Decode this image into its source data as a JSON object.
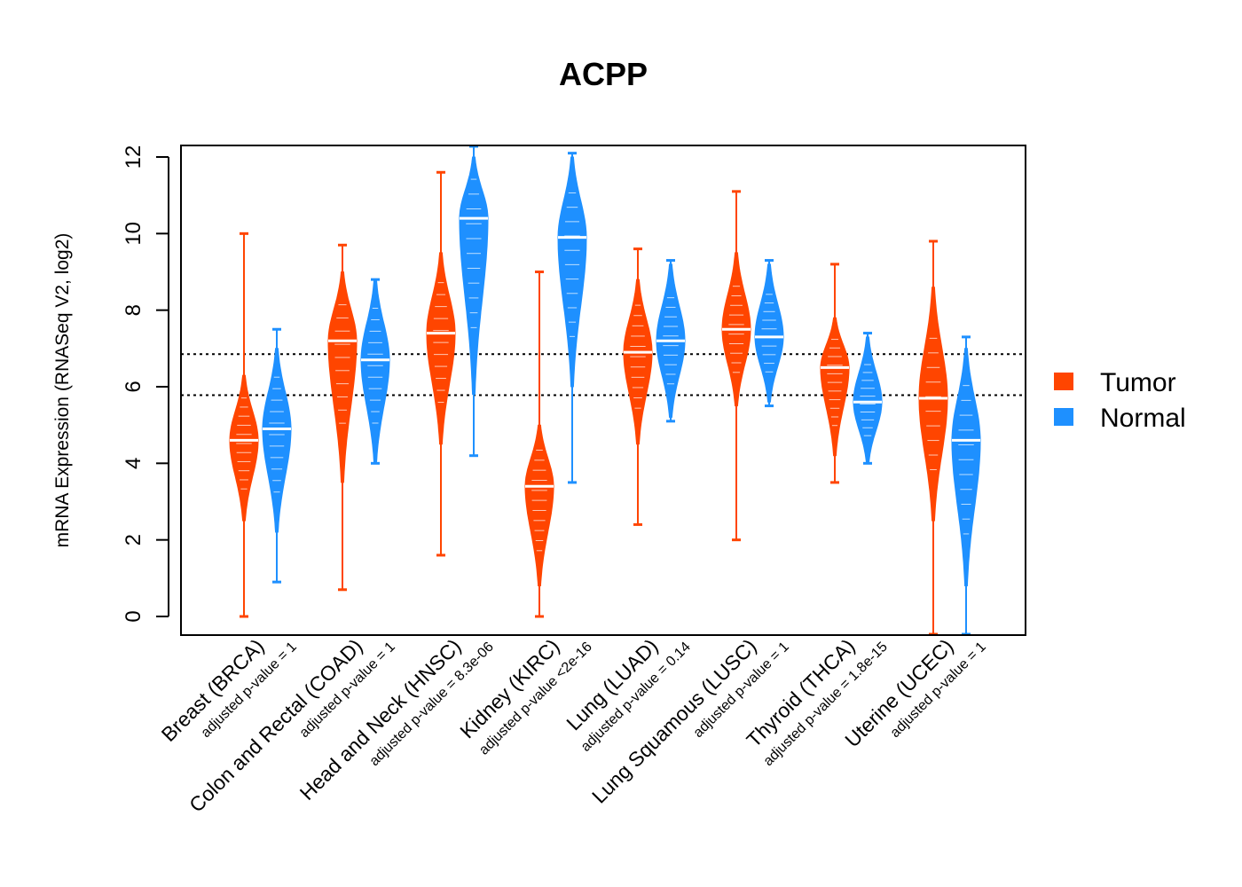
{
  "chart_data": {
    "type": "violin",
    "title": "ACPP",
    "ylabel": "mRNA Expression (RNASeq V2, log2)",
    "xlabel": "",
    "ylim": [
      -0.5,
      12.3
    ],
    "yticks": [
      0,
      2,
      4,
      6,
      8,
      10,
      12
    ],
    "reference_lines": [
      6.85,
      5.78
    ],
    "legend": {
      "position": "right",
      "entries": [
        {
          "name": "Tumor",
          "color": "#FF4500"
        },
        {
          "name": "Normal",
          "color": "#1E90FF"
        }
      ]
    },
    "categories": [
      {
        "name": "Breast (BRCA)",
        "pvalue": "adjusted p-value = 1",
        "tumor": {
          "median": 4.6,
          "min": 0,
          "max": 10,
          "body_min": 2.5,
          "body_max": 6.3
        },
        "normal": {
          "median": 4.9,
          "min": 0.9,
          "max": 7.5,
          "body_min": 2.2,
          "body_max": 7.0
        }
      },
      {
        "name": "Colon and Rectal (COAD)",
        "pvalue": "adjusted p-value = 1",
        "tumor": {
          "median": 7.2,
          "min": 0.7,
          "max": 9.7,
          "body_min": 3.5,
          "body_max": 9.0
        },
        "normal": {
          "median": 6.7,
          "min": 4.0,
          "max": 8.8,
          "body_min": 4.0,
          "body_max": 8.8
        }
      },
      {
        "name": "Head and Neck (HNSC)",
        "pvalue": "adjusted p-value = 8.3e-06",
        "tumor": {
          "median": 7.4,
          "min": 1.6,
          "max": 11.6,
          "body_min": 4.5,
          "body_max": 9.5
        },
        "normal": {
          "median": 10.4,
          "min": 4.2,
          "max": 12.3,
          "body_min": 5.8,
          "body_max": 12.0
        }
      },
      {
        "name": "Kidney (KIRC)",
        "pvalue": "adjusted p-value <2e-16",
        "tumor": {
          "median": 3.4,
          "min": 0,
          "max": 9.0,
          "body_min": 0.8,
          "body_max": 5.0
        },
        "normal": {
          "median": 9.9,
          "min": 3.5,
          "max": 12.1,
          "body_min": 6.0,
          "body_max": 12.0
        }
      },
      {
        "name": "Lung (LUAD)",
        "pvalue": "adjusted p-value = 0.14",
        "tumor": {
          "median": 6.9,
          "min": 2.4,
          "max": 9.6,
          "body_min": 4.5,
          "body_max": 8.8
        },
        "normal": {
          "median": 7.2,
          "min": 5.1,
          "max": 9.3,
          "body_min": 5.2,
          "body_max": 9.2
        }
      },
      {
        "name": "Lung Squamous (LUSC)",
        "pvalue": "adjusted p-value = 1",
        "tumor": {
          "median": 7.5,
          "min": 2.0,
          "max": 11.1,
          "body_min": 5.5,
          "body_max": 9.5
        },
        "normal": {
          "median": 7.3,
          "min": 5.5,
          "max": 9.3,
          "body_min": 5.6,
          "body_max": 9.2
        }
      },
      {
        "name": "Thyroid (THCA)",
        "pvalue": "adjusted p-value = 1.8e-15",
        "tumor": {
          "median": 6.5,
          "min": 3.5,
          "max": 9.2,
          "body_min": 4.2,
          "body_max": 7.8
        },
        "normal": {
          "median": 5.6,
          "min": 4.0,
          "max": 7.4,
          "body_min": 4.0,
          "body_max": 7.3
        }
      },
      {
        "name": "Uterine (UCEC)",
        "pvalue": "adjusted p-value = 1",
        "tumor": {
          "median": 5.7,
          "min": -0.5,
          "max": 9.8,
          "body_min": 2.5,
          "body_max": 8.6
        },
        "normal": {
          "median": 4.6,
          "min": -0.5,
          "max": 7.3,
          "body_min": 0.8,
          "body_max": 7.0
        }
      }
    ]
  }
}
